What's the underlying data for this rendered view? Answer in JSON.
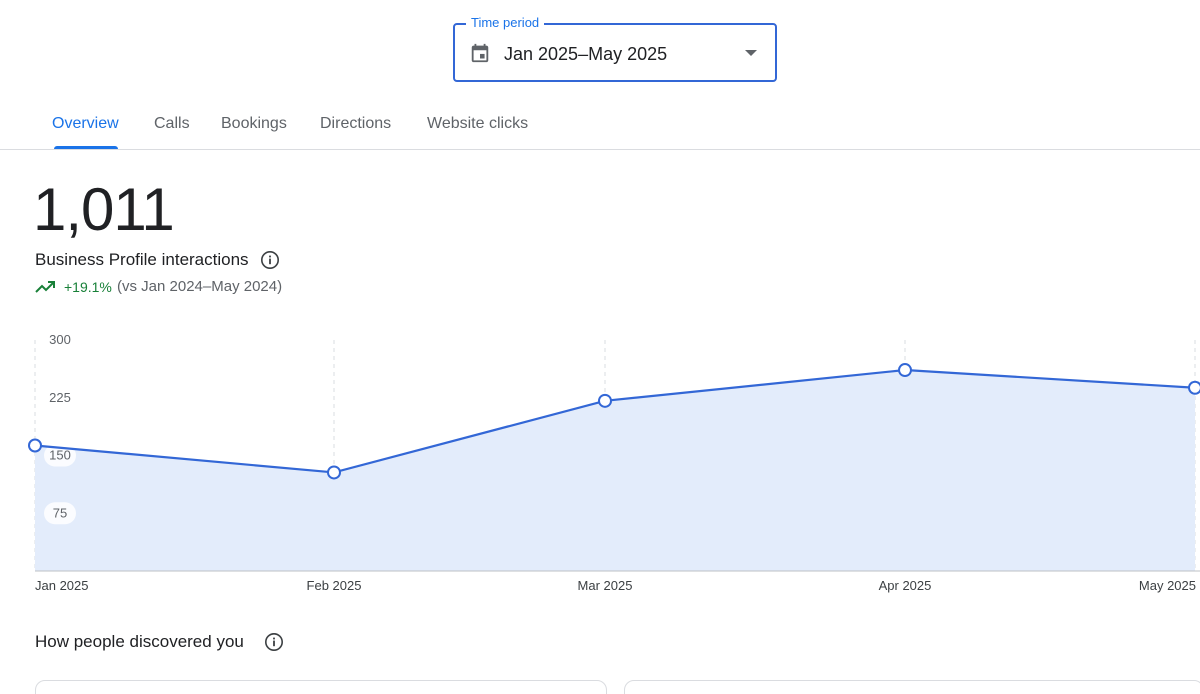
{
  "time_period": {
    "legend": "Time period",
    "value": "Jan 2025–May 2025",
    "icon": "calendar-icon"
  },
  "tabs": [
    {
      "label": "Overview",
      "active": true
    },
    {
      "label": "Calls",
      "active": false
    },
    {
      "label": "Bookings",
      "active": false
    },
    {
      "label": "Directions",
      "active": false
    },
    {
      "label": "Website clicks",
      "active": false
    }
  ],
  "metric": {
    "value": "1,011",
    "label": "Business Profile interactions",
    "change": "+19.1%",
    "comparison": "(vs Jan 2024–May 2024)"
  },
  "colors": {
    "accent": "#1a73e8",
    "line": "#3367d6",
    "area_fill": "#e3ecfb",
    "positive": "#188038"
  },
  "chart_data": {
    "type": "area",
    "categories": [
      "Jan 2025",
      "Feb 2025",
      "Mar 2025",
      "Apr 2025",
      "May 2025"
    ],
    "values": [
      163,
      128,
      221,
      261,
      238
    ],
    "y_ticks": [
      75,
      150,
      225,
      300
    ],
    "ylim": [
      0,
      300
    ],
    "grid": "vertical dashed"
  },
  "discovery": {
    "title": "How people discovered you"
  }
}
